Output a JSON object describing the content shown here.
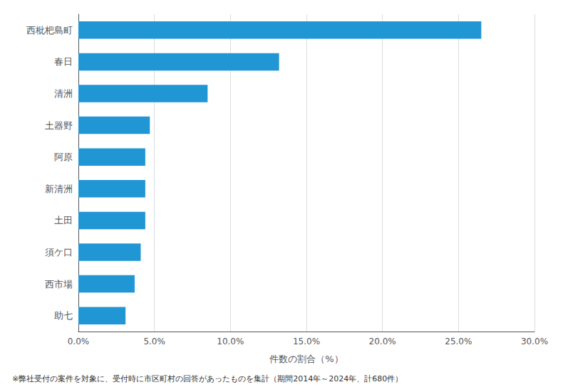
{
  "chart_data": {
    "type": "bar",
    "orientation": "horizontal",
    "categories": [
      "西枇杷島町",
      "春日",
      "清洲",
      "土器野",
      "阿原",
      "新清洲",
      "土田",
      "須ケ口",
      "西市場",
      "助七"
    ],
    "values": [
      26.5,
      13.2,
      8.5,
      4.7,
      4.4,
      4.4,
      4.4,
      4.1,
      3.7,
      3.1
    ],
    "color": "#2196d4",
    "xlabel": "件数の割合（%）",
    "xlim": [
      0,
      30
    ],
    "xticks": [
      {
        "value": 0,
        "label": "0.0%"
      },
      {
        "value": 5,
        "label": "5.0%"
      },
      {
        "value": 10,
        "label": "10.0%"
      },
      {
        "value": 15,
        "label": "15.0%"
      },
      {
        "value": 20,
        "label": "20.0%"
      },
      {
        "value": 25,
        "label": "25.0%"
      },
      {
        "value": 30,
        "label": "30.0%"
      }
    ],
    "grid": true,
    "annotations": [
      "※弊社受付の案件を対象に、受付時に市区町村の回答があったものを集計（期間2014年～2024年、計680件）"
    ]
  }
}
